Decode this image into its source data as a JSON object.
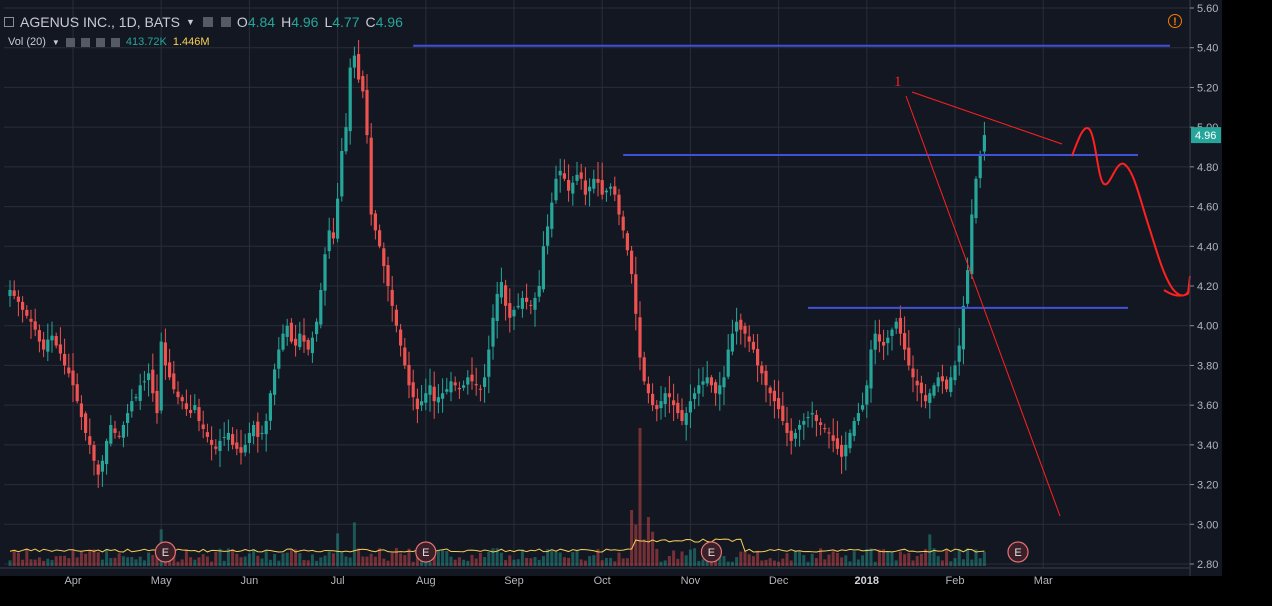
{
  "header": {
    "symbol": "AGENUS INC., 1D, BATS",
    "open_label": "O",
    "open_value": "4.84",
    "high_label": "H",
    "high_value": "4.96",
    "low_label": "L",
    "low_value": "4.77",
    "close_label": "C",
    "close_value": "4.96"
  },
  "volume_indicator": {
    "label": "Vol (20)",
    "value": "413.72K",
    "ma_value": "1.446M"
  },
  "icons": {
    "alert": "alert-icon",
    "collapse": "square-icon"
  },
  "colors": {
    "background": "#131722",
    "grid": "#2a2e39",
    "up": "#26a69a",
    "down": "#ef5350",
    "level_line": "#3f51d8",
    "annotation": "#ff2020",
    "volume_ma": "#f7d154",
    "price_label_bg": "#26a69a"
  },
  "chart_data": {
    "type": "candlestick",
    "title": "AGENUS INC., 1D, BATS",
    "xlabel": "",
    "ylabel": "",
    "ylim": [
      2.8,
      5.6
    ],
    "y_ticks": [
      5.6,
      5.4,
      5.2,
      5.0,
      4.8,
      4.6,
      4.4,
      4.2,
      4.0,
      3.8,
      3.6,
      3.4,
      3.2,
      3.0,
      2.8
    ],
    "y_tick_labels": [
      "5.60",
      "5.40",
      "5.20",
      "5.00",
      "4.80",
      "4.60",
      "4.40",
      "4.20",
      "4.00",
      "3.80",
      "3.60",
      "3.40",
      "3.20",
      "3.00",
      "2.80"
    ],
    "x_tick_labels": [
      "Apr",
      "May",
      "Jun",
      "Jul",
      "Aug",
      "Sep",
      "Oct",
      "Nov",
      "Dec",
      "2018",
      "Feb",
      "Mar"
    ],
    "x_tick_index": [
      15,
      36,
      57,
      78,
      99,
      120,
      141,
      162,
      183,
      204,
      225,
      246
    ],
    "last_price_label": "4.96",
    "earnings_marker_label": "E",
    "earnings_index": [
      37,
      99,
      167,
      240
    ],
    "closes": [
      4.18,
      4.15,
      4.12,
      4.08,
      4.05,
      4.02,
      3.98,
      3.92,
      3.88,
      3.93,
      3.95,
      3.9,
      3.86,
      3.8,
      3.76,
      3.7,
      3.62,
      3.54,
      3.46,
      3.4,
      3.32,
      3.25,
      3.32,
      3.42,
      3.5,
      3.46,
      3.44,
      3.5,
      3.56,
      3.62,
      3.64,
      3.7,
      3.72,
      3.76,
      3.66,
      3.56,
      3.92,
      3.8,
      3.74,
      3.68,
      3.64,
      3.62,
      3.58,
      3.56,
      3.6,
      3.52,
      3.48,
      3.44,
      3.4,
      3.38,
      3.42,
      3.44,
      3.46,
      3.4,
      3.38,
      3.36,
      3.4,
      3.46,
      3.5,
      3.44,
      3.46,
      3.52,
      3.66,
      3.78,
      3.88,
      3.96,
      4.0,
      3.92,
      3.9,
      3.96,
      3.92,
      3.88,
      3.94,
      4.02,
      4.18,
      4.36,
      4.48,
      4.44,
      4.64,
      4.88,
      5.0,
      5.3,
      5.36,
      5.24,
      5.18,
      4.96,
      4.56,
      4.48,
      4.4,
      4.3,
      4.2,
      4.1,
      4.0,
      3.9,
      3.8,
      3.7,
      3.64,
      3.58,
      3.62,
      3.66,
      3.7,
      3.62,
      3.64,
      3.66,
      3.68,
      3.72,
      3.7,
      3.68,
      3.7,
      3.74,
      3.72,
      3.7,
      3.68,
      3.74,
      3.88,
      4.04,
      4.16,
      4.22,
      4.1,
      4.04,
      4.08,
      4.1,
      4.14,
      4.12,
      4.1,
      4.14,
      4.2,
      4.4,
      4.5,
      4.62,
      4.74,
      4.78,
      4.74,
      4.68,
      4.72,
      4.76,
      4.74,
      4.66,
      4.7,
      4.74,
      4.72,
      4.66,
      4.68,
      4.7,
      4.66,
      4.56,
      4.48,
      4.38,
      4.26,
      4.06,
      3.84,
      3.72,
      3.66,
      3.6,
      3.58,
      3.62,
      3.66,
      3.64,
      3.6,
      3.56,
      3.52,
      3.56,
      3.62,
      3.66,
      3.7,
      3.72,
      3.74,
      3.7,
      3.66,
      3.7,
      3.74,
      3.88,
      3.96,
      4.02,
      3.98,
      3.96,
      3.92,
      3.88,
      3.8,
      3.76,
      3.7,
      3.66,
      3.62,
      3.58,
      3.52,
      3.46,
      3.42,
      3.46,
      3.5,
      3.52,
      3.54,
      3.56,
      3.52,
      3.5,
      3.48,
      3.46,
      3.42,
      3.38,
      3.34,
      3.4,
      3.46,
      3.52,
      3.56,
      3.6,
      3.7,
      3.88,
      3.96,
      3.92,
      3.9,
      3.94,
      3.98,
      4.02,
      3.96,
      3.88,
      3.8,
      3.74,
      3.7,
      3.66,
      3.62,
      3.66,
      3.7,
      3.74,
      3.72,
      3.68,
      3.74,
      3.8,
      3.9,
      4.1,
      4.28,
      4.56,
      4.74,
      4.86,
      4.96
    ]
  }
}
